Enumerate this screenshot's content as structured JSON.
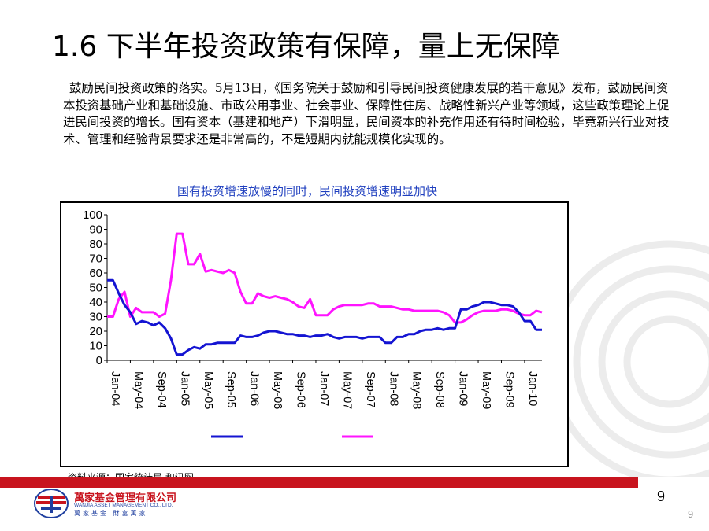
{
  "slide": {
    "title": "1.6 下半年投资政策有保障，量上无保障",
    "body": "鼓励民间投资政策的落实。5月13日，《国务院关于鼓励和引导民间投资健康发展的若干意见》发布，鼓励民间资本投资基础产业和基础设施、市政公用事业、社会事业、保障性住房、战略性新兴产业等领域，这些政策理论上促进民间投资的增长。国有资本（基建和地产）下滑明显，民间资本的补充作用还有待时间检验，毕竟新兴行业对技术、管理和经验背景要求还是非常高的，不是短期内就能规模化实现的。",
    "source": "资料来源：国家统计局 和讯网",
    "page_number": "9",
    "page_number_small": "9"
  },
  "logo": {
    "name_cn": "萬家基金管理有限公司",
    "name_en": "WANJIA ASSET MANAGEMENT CO., LTD.",
    "slogan": "萬家基金 財富萬家"
  },
  "colors": {
    "blue_series": "#1414d2",
    "magenta_series": "#ff14ff",
    "chart_title": "#1f3fbf",
    "brand_red": "#c8141e"
  },
  "chart_data": {
    "type": "line",
    "title": "国有投资增速放慢的同时，民间投资增速明显加快",
    "xlabel": "",
    "ylabel": "",
    "ylim": [
      0,
      100
    ],
    "yticks": [
      0,
      10,
      20,
      30,
      40,
      50,
      60,
      70,
      80,
      90,
      100
    ],
    "xticks": [
      "Jan-04",
      "May-04",
      "Sep-04",
      "Jan-05",
      "May-05",
      "Sep-05",
      "Jan-06",
      "May-06",
      "Sep-06",
      "Jan-07",
      "May-07",
      "Sep-07",
      "Jan-08",
      "May-08",
      "Sep-08",
      "Jan-09",
      "May-09",
      "Sep-09",
      "Jan-10"
    ],
    "x_start": "2004-01",
    "x_end": "2010-06",
    "grid": false,
    "legend_position": "bottom",
    "series": [
      {
        "name": "",
        "color": "#1414d2",
        "values": [
          55,
          55,
          46,
          38,
          33,
          25,
          27,
          26,
          24,
          26,
          22,
          15,
          4,
          4,
          7,
          9,
          8,
          11,
          11,
          12,
          12,
          12,
          12,
          17,
          16,
          16,
          17,
          19,
          20,
          20,
          19,
          18,
          18,
          17,
          17,
          16,
          17,
          17,
          18,
          16,
          15,
          16,
          16,
          16,
          15,
          16,
          16,
          16,
          12,
          12,
          16,
          16,
          18,
          18,
          20,
          21,
          21,
          22,
          21,
          22,
          22,
          35,
          35,
          37,
          38,
          40,
          40,
          39,
          38,
          38,
          37,
          33,
          27,
          27,
          21,
          21
        ]
      },
      {
        "name": "",
        "color": "#ff14ff",
        "values": [
          30,
          30,
          42,
          47,
          30,
          36,
          33,
          33,
          33,
          30,
          32,
          55,
          87,
          87,
          66,
          66,
          73,
          61,
          62,
          61,
          60,
          62,
          60,
          47,
          39,
          39,
          46,
          44,
          43,
          44,
          43,
          42,
          40,
          37,
          36,
          42,
          31,
          31,
          31,
          35,
          37,
          38,
          38,
          38,
          38,
          39,
          39,
          37,
          37,
          37,
          36,
          35,
          35,
          34,
          34,
          34,
          34,
          34,
          33,
          31,
          26,
          26,
          28,
          31,
          33,
          34,
          34,
          34,
          35,
          35,
          34,
          32,
          31,
          31,
          34,
          33
        ]
      }
    ]
  }
}
